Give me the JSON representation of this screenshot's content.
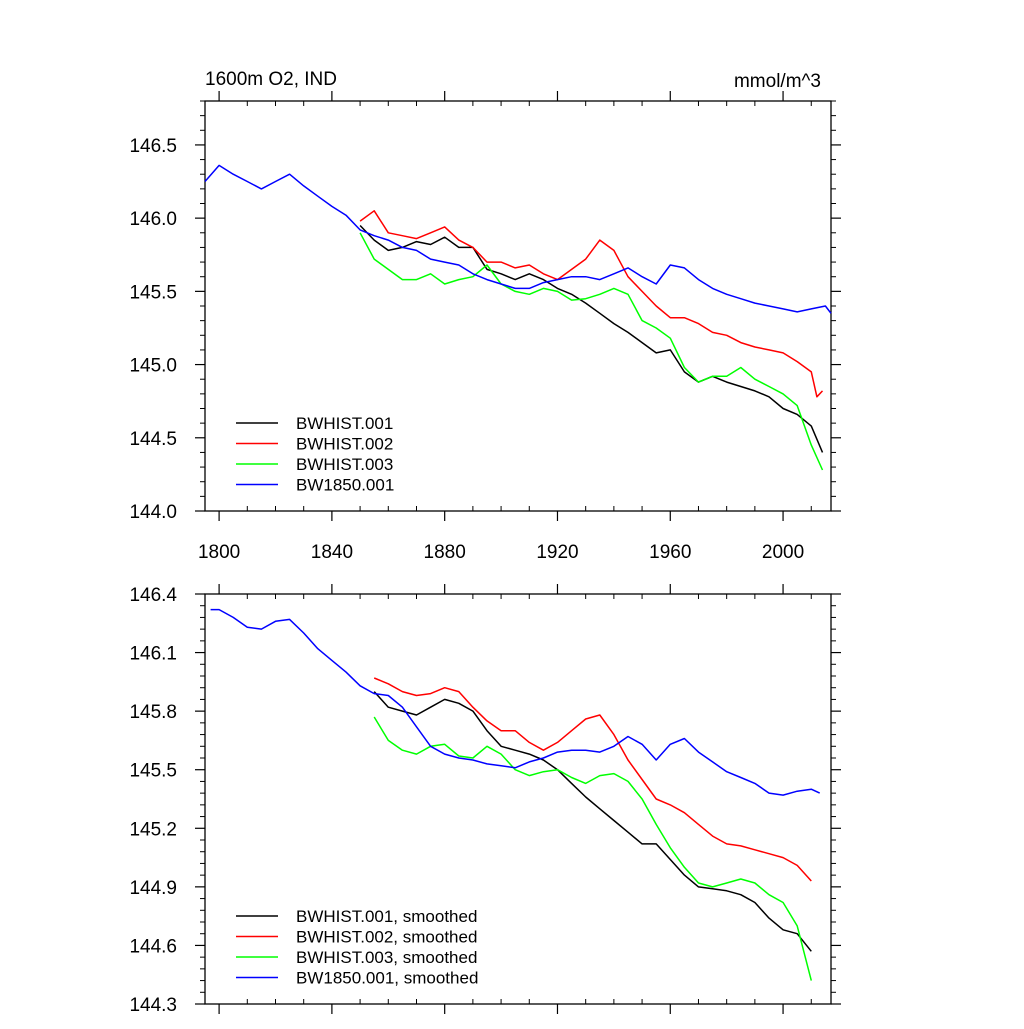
{
  "chart_data": [
    {
      "type": "line",
      "title_left": "1600m O2, IND",
      "title_right": "mmol/m^3",
      "xlabel": "",
      "ylabel": "",
      "xlim": [
        1795,
        2017
      ],
      "ylim": [
        144.0,
        146.8
      ],
      "xticks": [
        1800,
        1840,
        1880,
        1920,
        1960,
        2000
      ],
      "yticks": [
        144.0,
        144.5,
        145.0,
        145.5,
        146.0,
        146.5
      ],
      "ytick_labels": [
        "144.0",
        "144.5",
        "145.0",
        "145.5",
        "146.0",
        "146.5"
      ],
      "legend_position": "bottom-left",
      "series": [
        {
          "name": "BWHIST.001",
          "color": "#000000",
          "x": [
            1850,
            1855,
            1860,
            1865,
            1870,
            1875,
            1880,
            1885,
            1890,
            1895,
            1900,
            1905,
            1910,
            1915,
            1920,
            1925,
            1930,
            1935,
            1940,
            1945,
            1950,
            1955,
            1960,
            1965,
            1970,
            1975,
            1980,
            1985,
            1990,
            1995,
            2000,
            2005,
            2010,
            2014
          ],
          "y": [
            145.95,
            145.85,
            145.78,
            145.8,
            145.84,
            145.82,
            145.87,
            145.8,
            145.8,
            145.65,
            145.62,
            145.58,
            145.62,
            145.58,
            145.52,
            145.48,
            145.42,
            145.35,
            145.28,
            145.22,
            145.15,
            145.08,
            145.1,
            144.95,
            144.88,
            144.92,
            144.88,
            144.85,
            144.82,
            144.78,
            144.7,
            144.66,
            144.58,
            144.4
          ]
        },
        {
          "name": "BWHIST.002",
          "color": "#ff0000",
          "x": [
            1850,
            1855,
            1860,
            1865,
            1870,
            1875,
            1880,
            1885,
            1890,
            1895,
            1900,
            1905,
            1910,
            1915,
            1920,
            1925,
            1930,
            1935,
            1940,
            1945,
            1950,
            1955,
            1960,
            1965,
            1970,
            1975,
            1980,
            1985,
            1990,
            1995,
            2000,
            2005,
            2010,
            2012,
            2014
          ],
          "y": [
            145.98,
            146.05,
            145.9,
            145.88,
            145.86,
            145.9,
            145.94,
            145.85,
            145.8,
            145.7,
            145.7,
            145.66,
            145.68,
            145.62,
            145.58,
            145.65,
            145.72,
            145.85,
            145.78,
            145.6,
            145.5,
            145.4,
            145.32,
            145.32,
            145.28,
            145.22,
            145.2,
            145.15,
            145.12,
            145.1,
            145.08,
            145.02,
            144.95,
            144.78,
            144.82
          ]
        },
        {
          "name": "BWHIST.003",
          "color": "#00ff00",
          "x": [
            1850,
            1855,
            1860,
            1865,
            1870,
            1875,
            1880,
            1885,
            1890,
            1895,
            1900,
            1905,
            1910,
            1915,
            1920,
            1925,
            1930,
            1935,
            1940,
            1945,
            1950,
            1955,
            1960,
            1965,
            1970,
            1975,
            1980,
            1985,
            1990,
            1995,
            2000,
            2005,
            2010,
            2014
          ],
          "y": [
            145.9,
            145.72,
            145.65,
            145.58,
            145.58,
            145.62,
            145.55,
            145.58,
            145.6,
            145.68,
            145.55,
            145.5,
            145.48,
            145.52,
            145.5,
            145.44,
            145.45,
            145.48,
            145.52,
            145.48,
            145.3,
            145.25,
            145.18,
            144.98,
            144.88,
            144.92,
            144.92,
            144.98,
            144.9,
            144.85,
            144.8,
            144.72,
            144.45,
            144.28
          ]
        },
        {
          "name": "BW1850.001",
          "color": "#0000ff",
          "x": [
            1795,
            1800,
            1805,
            1810,
            1815,
            1820,
            1825,
            1830,
            1835,
            1840,
            1845,
            1850,
            1855,
            1860,
            1865,
            1870,
            1875,
            1880,
            1885,
            1890,
            1895,
            1900,
            1905,
            1910,
            1915,
            1920,
            1925,
            1930,
            1935,
            1940,
            1945,
            1950,
            1955,
            1960,
            1965,
            1970,
            1975,
            1980,
            1985,
            1990,
            1995,
            2000,
            2005,
            2010,
            2015,
            2017
          ],
          "y": [
            146.25,
            146.36,
            146.3,
            146.25,
            146.2,
            146.25,
            146.3,
            146.22,
            146.15,
            146.08,
            146.02,
            145.92,
            145.88,
            145.85,
            145.8,
            145.78,
            145.72,
            145.7,
            145.68,
            145.62,
            145.58,
            145.55,
            145.52,
            145.52,
            145.56,
            145.58,
            145.6,
            145.6,
            145.58,
            145.62,
            145.66,
            145.6,
            145.55,
            145.68,
            145.66,
            145.58,
            145.52,
            145.48,
            145.45,
            145.42,
            145.4,
            145.38,
            145.36,
            145.38,
            145.4,
            145.35
          ]
        }
      ]
    },
    {
      "type": "line",
      "title_left": "",
      "title_right": "",
      "xlabel": "",
      "ylabel": "",
      "xlim": [
        1795,
        2017
      ],
      "ylim": [
        144.3,
        146.4
      ],
      "xticks": [
        1800,
        1840,
        1880,
        1920,
        1960,
        2000
      ],
      "yticks": [
        144.3,
        144.6,
        144.9,
        145.2,
        145.5,
        145.8,
        146.1,
        146.4
      ],
      "ytick_labels": [
        "144.3",
        "144.6",
        "144.9",
        "145.2",
        "145.5",
        "145.8",
        "146.1",
        "146.4"
      ],
      "legend_position": "bottom-left",
      "series": [
        {
          "name": "BWHIST.001, smoothed",
          "color": "#000000",
          "x": [
            1855,
            1860,
            1865,
            1870,
            1875,
            1880,
            1885,
            1890,
            1895,
            1900,
            1905,
            1910,
            1915,
            1920,
            1925,
            1930,
            1935,
            1940,
            1945,
            1950,
            1955,
            1960,
            1965,
            1970,
            1975,
            1980,
            1985,
            1990,
            1995,
            2000,
            2005,
            2010
          ],
          "y": [
            145.9,
            145.82,
            145.8,
            145.78,
            145.82,
            145.86,
            145.84,
            145.8,
            145.7,
            145.62,
            145.6,
            145.58,
            145.55,
            145.5,
            145.43,
            145.36,
            145.3,
            145.24,
            145.18,
            145.12,
            145.12,
            145.04,
            144.96,
            144.9,
            144.89,
            144.88,
            144.86,
            144.82,
            144.74,
            144.68,
            144.66,
            144.57
          ]
        },
        {
          "name": "BWHIST.002, smoothed",
          "color": "#ff0000",
          "x": [
            1855,
            1860,
            1865,
            1870,
            1875,
            1880,
            1885,
            1890,
            1895,
            1900,
            1905,
            1910,
            1915,
            1920,
            1925,
            1930,
            1935,
            1940,
            1945,
            1950,
            1955,
            1960,
            1965,
            1970,
            1975,
            1980,
            1985,
            1990,
            1995,
            2000,
            2005,
            2010
          ],
          "y": [
            145.97,
            145.94,
            145.9,
            145.88,
            145.89,
            145.92,
            145.9,
            145.82,
            145.75,
            145.7,
            145.7,
            145.64,
            145.6,
            145.64,
            145.7,
            145.76,
            145.78,
            145.68,
            145.55,
            145.45,
            145.35,
            145.32,
            145.28,
            145.22,
            145.16,
            145.12,
            145.11,
            145.09,
            145.07,
            145.05,
            145.01,
            144.93
          ]
        },
        {
          "name": "BWHIST.003, smoothed",
          "color": "#00ff00",
          "x": [
            1855,
            1860,
            1865,
            1870,
            1875,
            1880,
            1885,
            1890,
            1895,
            1900,
            1905,
            1910,
            1915,
            1920,
            1925,
            1930,
            1935,
            1940,
            1945,
            1950,
            1955,
            1960,
            1965,
            1970,
            1975,
            1980,
            1985,
            1990,
            1995,
            2000,
            2005,
            2010
          ],
          "y": [
            145.77,
            145.65,
            145.6,
            145.58,
            145.62,
            145.63,
            145.57,
            145.56,
            145.62,
            145.58,
            145.5,
            145.47,
            145.49,
            145.5,
            145.46,
            145.43,
            145.47,
            145.48,
            145.44,
            145.35,
            145.22,
            145.1,
            145.0,
            144.92,
            144.9,
            144.92,
            144.94,
            144.92,
            144.86,
            144.82,
            144.7,
            144.42
          ]
        },
        {
          "name": "BW1850.001, smoothed",
          "color": "#0000ff",
          "x": [
            1797,
            1800,
            1805,
            1810,
            1815,
            1820,
            1825,
            1830,
            1835,
            1840,
            1845,
            1850,
            1855,
            1860,
            1865,
            1870,
            1875,
            1880,
            1885,
            1890,
            1895,
            1900,
            1905,
            1910,
            1915,
            1920,
            1925,
            1930,
            1935,
            1940,
            1945,
            1950,
            1955,
            1960,
            1965,
            1970,
            1975,
            1980,
            1985,
            1990,
            1995,
            2000,
            2005,
            2010,
            2013
          ],
          "y": [
            146.32,
            146.32,
            146.28,
            146.23,
            146.22,
            146.26,
            146.27,
            146.2,
            146.12,
            146.06,
            146.0,
            145.93,
            145.89,
            145.88,
            145.82,
            145.72,
            145.62,
            145.58,
            145.56,
            145.55,
            145.53,
            145.52,
            145.51,
            145.54,
            145.56,
            145.59,
            145.6,
            145.6,
            145.59,
            145.62,
            145.67,
            145.63,
            145.55,
            145.63,
            145.66,
            145.59,
            145.54,
            145.49,
            145.46,
            145.43,
            145.38,
            145.37,
            145.39,
            145.4,
            145.38
          ]
        }
      ]
    }
  ]
}
